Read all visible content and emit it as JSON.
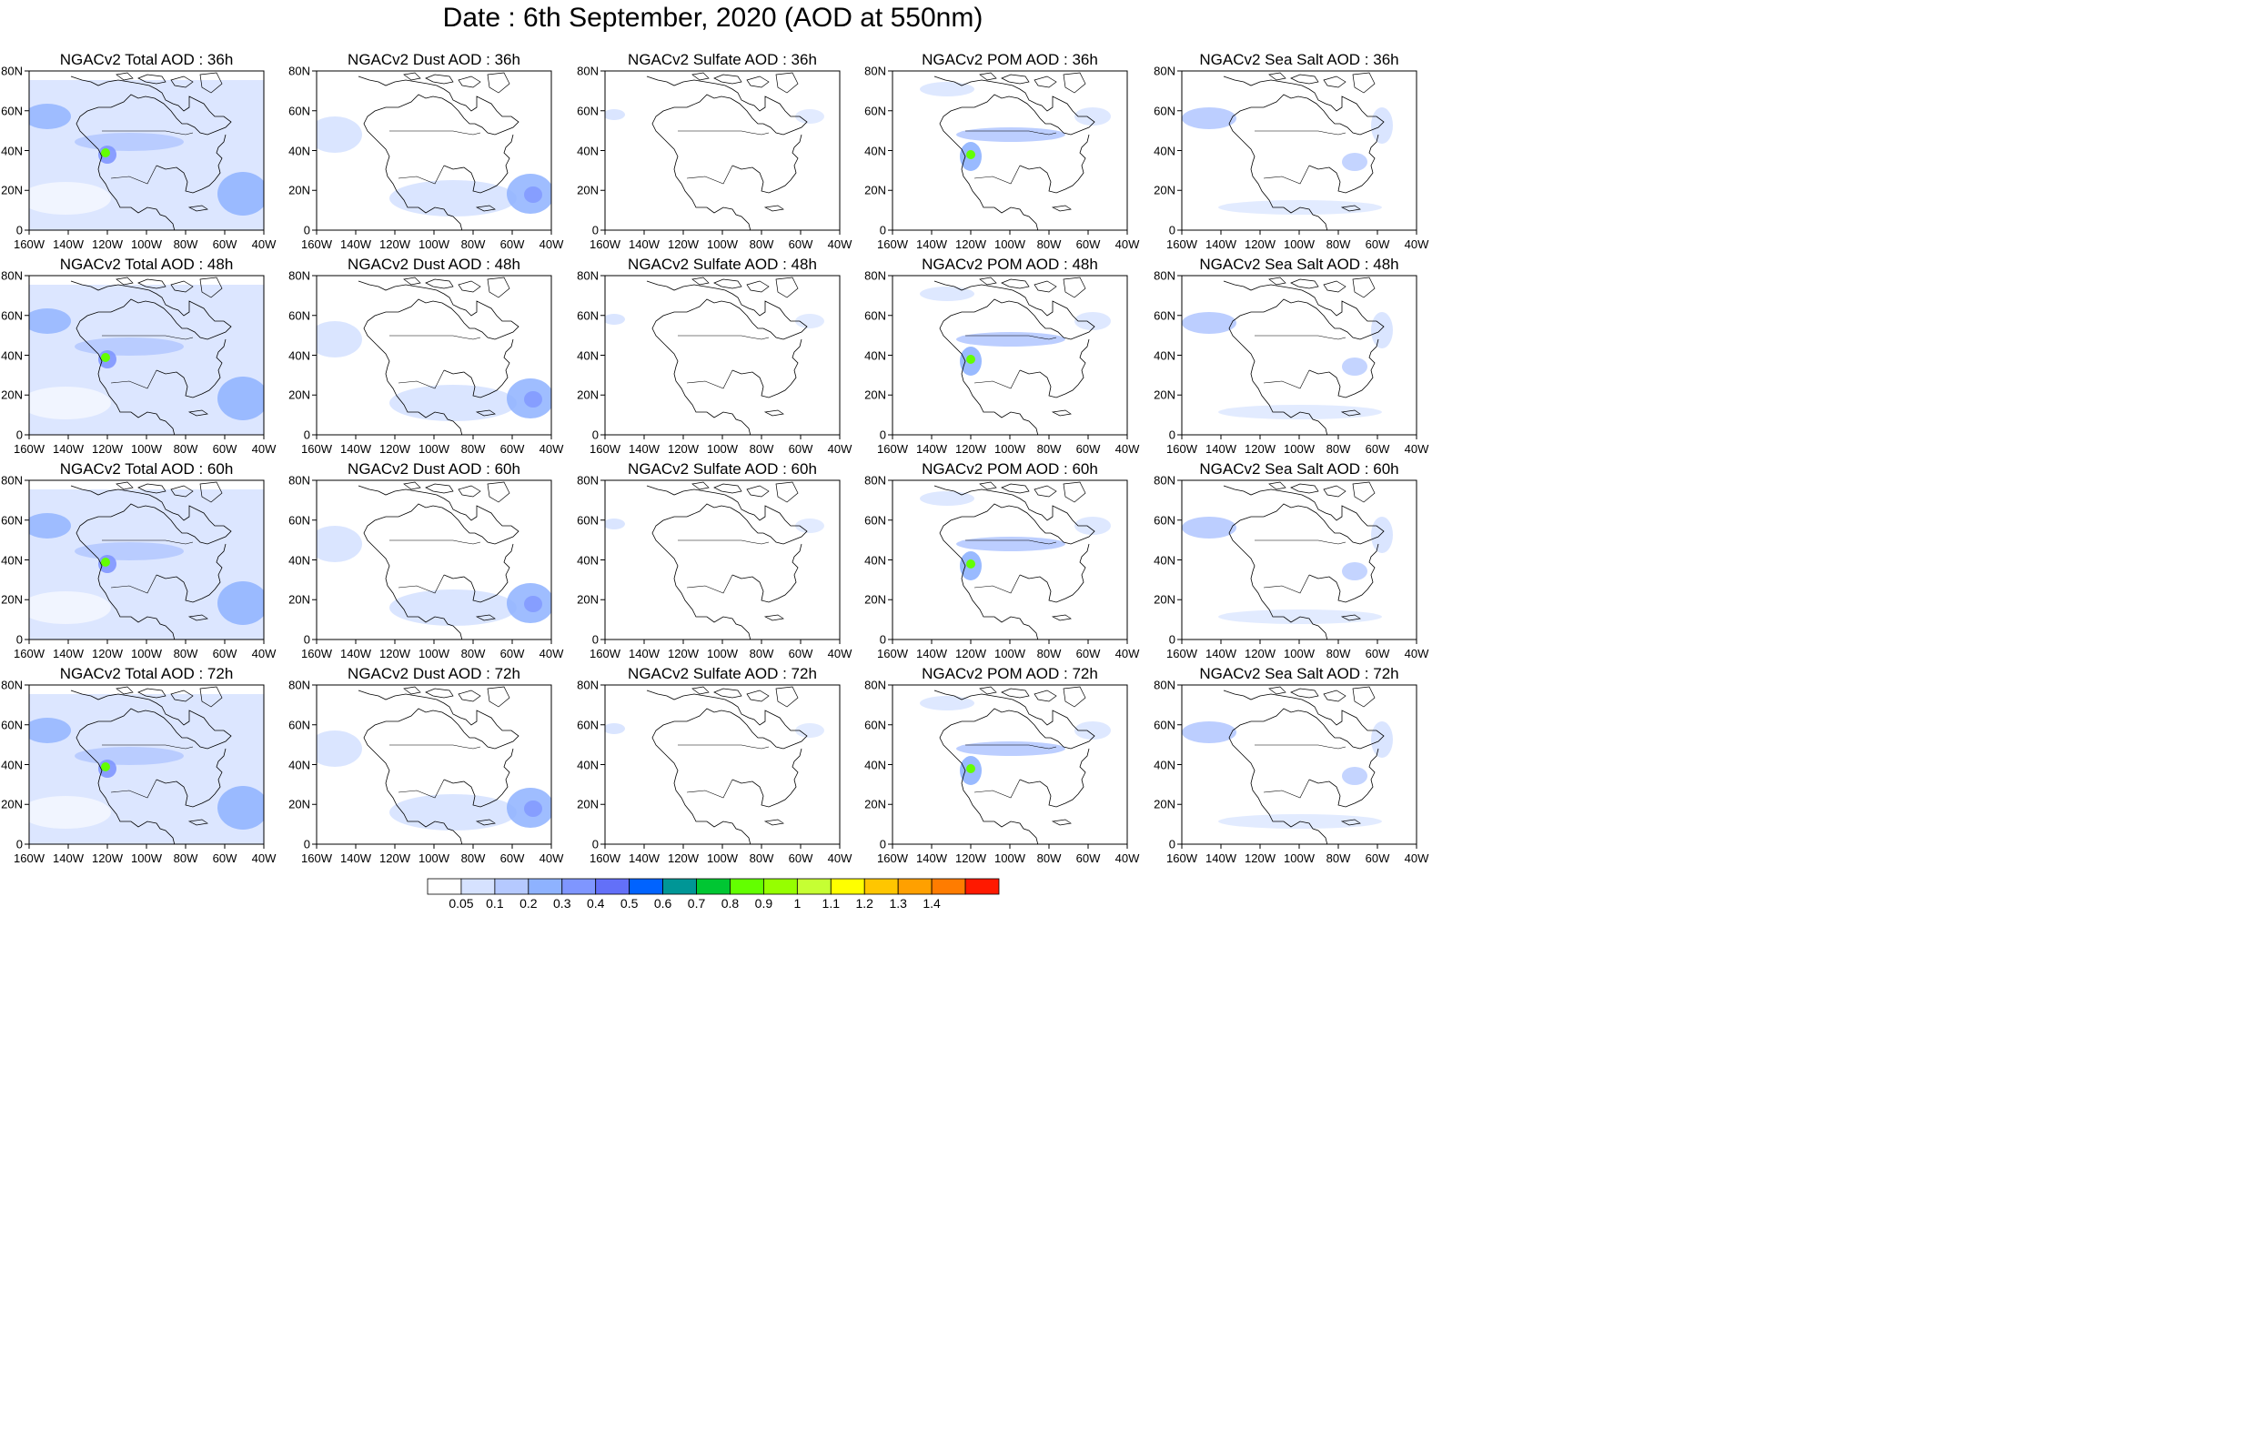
{
  "figure": {
    "title": "Date : 6th September, 2020 (AOD at 550nm)"
  },
  "panels": [
    [
      "NGACv2 Total AOD : 36h",
      "NGACv2 Dust AOD : 36h",
      "NGACv2 Sulfate AOD : 36h",
      "NGACv2 POM AOD : 36h",
      "NGACv2 Sea Salt AOD : 36h"
    ],
    [
      "NGACv2 Total AOD : 48h",
      "NGACv2 Dust AOD : 48h",
      "NGACv2 Sulfate AOD : 48h",
      "NGACv2 POM AOD : 48h",
      "NGACv2 Sea Salt AOD : 48h"
    ],
    [
      "NGACv2 Total AOD : 60h",
      "NGACv2 Dust AOD : 60h",
      "NGACv2 Sulfate AOD : 60h",
      "NGACv2 POM AOD : 60h",
      "NGACv2 Sea Salt AOD : 60h"
    ],
    [
      "NGACv2 Total AOD : 72h",
      "NGACv2 Dust AOD : 72h",
      "NGACv2 Sulfate AOD : 72h",
      "NGACv2 POM AOD : 72h",
      "NGACv2 Sea Salt  AOD : 72h"
    ]
  ],
  "map_axes": {
    "lon_ticks": [
      "160W",
      "140W",
      "120W",
      "100W",
      "80W",
      "60W",
      "40W"
    ],
    "lat_ticks": [
      "0",
      "20N",
      "40N",
      "60N",
      "80N"
    ],
    "lon_range": [
      -160,
      -40
    ],
    "lat_range": [
      0,
      80
    ]
  },
  "colorbar": {
    "labels": [
      "0.05",
      "0.1",
      "0.2",
      "0.3",
      "0.4",
      "0.5",
      "0.6",
      "0.7",
      "0.8",
      "0.9",
      "1",
      "1.1",
      "1.2",
      "1.3",
      "1.4"
    ],
    "colors": [
      "#ffffff",
      "#d6e2ff",
      "#b5c9ff",
      "#8eb2ff",
      "#7f96ff",
      "#6370f8",
      "#0063ff",
      "#009696",
      "#00c633",
      "#63ff00",
      "#96ff00",
      "#c6ff33",
      "#ffff00",
      "#ffc600",
      "#ffa000",
      "#ff7c00",
      "#ff1900"
    ]
  }
}
